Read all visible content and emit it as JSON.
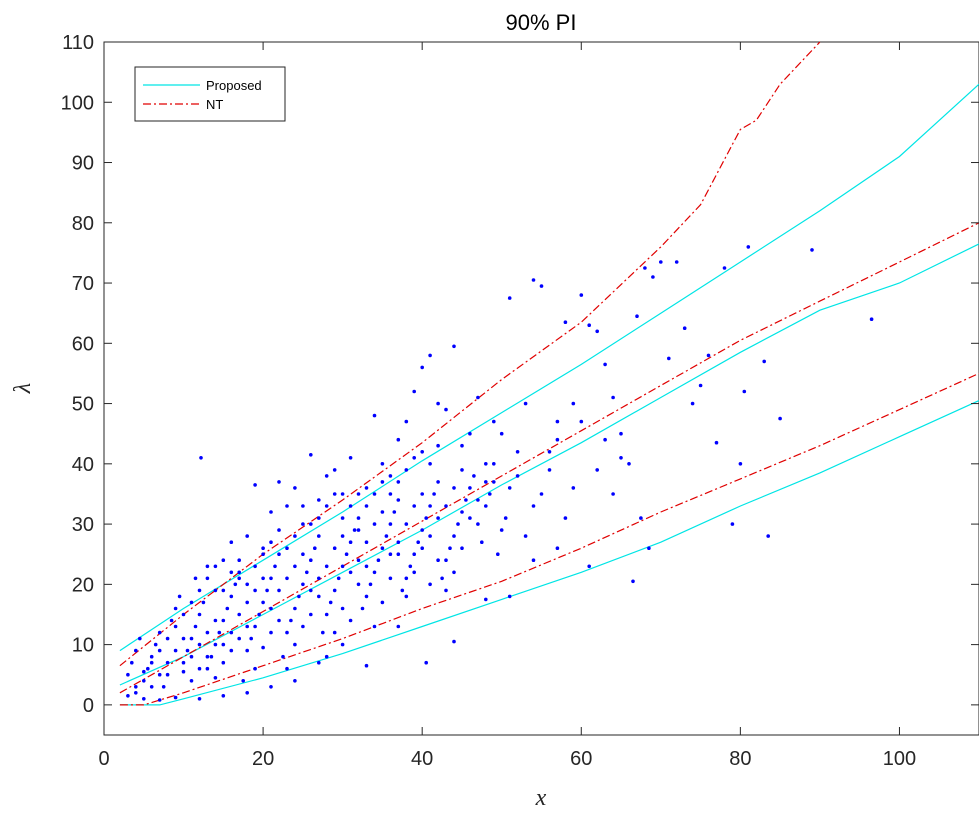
{
  "chart_data": {
    "type": "scatter",
    "title": "90% PI",
    "xlabel": "x",
    "ylabel": "λ",
    "xlim": [
      0,
      110
    ],
    "ylim": [
      -5,
      110
    ],
    "xticks": [
      0,
      20,
      40,
      60,
      80,
      100
    ],
    "yticks": [
      0,
      10,
      20,
      30,
      40,
      50,
      60,
      70,
      80,
      90,
      100,
      110
    ],
    "grid": false,
    "legend_position": "top-left",
    "legend": [
      {
        "label": "Proposed",
        "color": "#00e5e5",
        "style": "solid"
      },
      {
        "label": "NT",
        "color": "#e00000",
        "style": "dash-dot"
      }
    ],
    "colors": {
      "points": "#0000ff",
      "proposed": "#00e5e5",
      "nt": "#e00000",
      "axes": "#262626"
    },
    "series": [
      {
        "name": "Proposed",
        "role": "upper",
        "x": [
          2,
          10,
          20,
          30,
          40,
          50,
          60,
          70,
          80,
          90,
          100,
          110
        ],
        "y": [
          9,
          16,
          24,
          32,
          40.5,
          48.5,
          56.5,
          65,
          73.5,
          82,
          91,
          103
        ]
      },
      {
        "name": "Proposed",
        "role": "median",
        "x": [
          2,
          10,
          20,
          30,
          40,
          50,
          60,
          70,
          80,
          90,
          100,
          110
        ],
        "y": [
          3.3,
          8,
          15,
          22,
          29,
          36.5,
          43.5,
          51,
          58.5,
          65.5,
          70,
          76.5
        ]
      },
      {
        "name": "Proposed",
        "role": "lower",
        "x": [
          2,
          7,
          10,
          20,
          30,
          40,
          50,
          60,
          70,
          80,
          90,
          100,
          110
        ],
        "y": [
          0,
          0,
          1,
          4.5,
          8.5,
          13,
          17.5,
          22,
          27,
          33,
          38.5,
          44.5,
          50.5
        ]
      },
      {
        "name": "NT",
        "role": "upper",
        "x": [
          2,
          10,
          20,
          30,
          40,
          50,
          60,
          70,
          75,
          79,
          80,
          82,
          85,
          90
        ],
        "y": [
          6.5,
          15,
          25,
          34,
          43.5,
          54,
          63.5,
          76,
          83,
          93,
          95.5,
          97,
          103,
          110
        ]
      },
      {
        "name": "NT",
        "role": "median",
        "x": [
          2,
          10,
          20,
          30,
          40,
          50,
          60,
          70,
          80,
          90,
          100,
          110
        ],
        "y": [
          2,
          8,
          15.5,
          23,
          30.5,
          38,
          45.5,
          53,
          60.5,
          67,
          73.5,
          80
        ]
      },
      {
        "name": "NT",
        "role": "lower",
        "x": [
          2,
          5,
          10,
          20,
          30,
          40,
          50,
          60,
          70,
          80,
          90,
          100,
          110
        ],
        "y": [
          0,
          0,
          2,
          6.5,
          11,
          16,
          20.5,
          26,
          32,
          37.5,
          43,
          49,
          55
        ]
      }
    ],
    "points": [
      [
        12.2,
        41
      ],
      [
        11.5,
        21
      ],
      [
        13,
        23
      ],
      [
        14,
        19
      ],
      [
        15,
        24
      ],
      [
        16,
        27
      ],
      [
        17,
        21
      ],
      [
        18,
        28
      ],
      [
        19,
        36.5
      ],
      [
        20,
        26
      ],
      [
        21,
        32
      ],
      [
        22,
        37
      ],
      [
        23,
        33
      ],
      [
        24,
        36
      ],
      [
        25,
        30
      ],
      [
        26,
        41.5
      ],
      [
        27,
        34
      ],
      [
        28,
        38
      ],
      [
        29,
        39
      ],
      [
        30,
        35
      ],
      [
        31,
        41
      ],
      [
        32,
        29
      ],
      [
        33,
        36
      ],
      [
        34,
        48
      ],
      [
        35,
        40
      ],
      [
        36,
        38
      ],
      [
        37,
        44
      ],
      [
        38,
        47
      ],
      [
        39,
        52
      ],
      [
        40,
        56
      ],
      [
        41,
        58
      ],
      [
        42,
        50
      ],
      [
        43,
        49
      ],
      [
        44,
        59.5
      ],
      [
        45,
        43
      ],
      [
        46,
        45
      ],
      [
        47,
        51
      ],
      [
        48,
        40
      ],
      [
        49,
        47
      ],
      [
        50,
        45
      ],
      [
        51,
        67.5
      ],
      [
        52,
        42
      ],
      [
        53,
        50
      ],
      [
        54,
        70.5
      ],
      [
        55,
        69.5
      ],
      [
        56,
        39
      ],
      [
        57,
        47
      ],
      [
        58,
        63.5
      ],
      [
        59,
        50
      ],
      [
        60,
        68
      ],
      [
        61,
        63
      ],
      [
        62,
        62
      ],
      [
        63,
        56.5
      ],
      [
        64,
        51
      ],
      [
        65,
        45
      ],
      [
        66,
        40
      ],
      [
        67,
        64.5
      ],
      [
        68,
        72.5
      ],
      [
        69,
        71
      ],
      [
        70,
        73.5
      ],
      [
        71,
        57.5
      ],
      [
        72,
        73.5
      ],
      [
        73,
        62.5
      ],
      [
        74,
        50
      ],
      [
        75,
        53
      ],
      [
        76,
        58
      ],
      [
        77,
        43.5
      ],
      [
        78,
        72.5
      ],
      [
        79,
        30
      ],
      [
        80,
        40
      ],
      [
        80.5,
        52
      ],
      [
        81,
        76
      ],
      [
        83,
        57
      ],
      [
        83.5,
        28
      ],
      [
        85,
        47.5
      ],
      [
        89,
        75.5
      ],
      [
        96.5,
        64
      ],
      [
        66.5,
        20.5
      ],
      [
        67.5,
        31
      ],
      [
        68.5,
        26
      ],
      [
        61,
        23
      ],
      [
        57,
        26
      ],
      [
        54,
        24
      ],
      [
        51,
        18
      ],
      [
        48,
        17.5
      ],
      [
        44,
        10.5
      ],
      [
        40.5,
        7
      ],
      [
        37,
        13
      ],
      [
        33,
        6.5
      ],
      [
        30,
        10
      ],
      [
        27,
        7
      ],
      [
        24,
        4
      ],
      [
        21,
        3
      ],
      [
        18,
        2
      ],
      [
        15,
        1.5
      ],
      [
        12,
        1
      ],
      [
        9,
        1.2
      ],
      [
        7,
        0.8
      ],
      [
        5,
        1
      ],
      [
        4,
        2
      ],
      [
        3,
        5
      ],
      [
        3.5,
        7
      ],
      [
        4,
        9
      ],
      [
        4.5,
        11
      ],
      [
        5,
        4
      ],
      [
        5.5,
        6
      ],
      [
        6,
        8
      ],
      [
        6.5,
        10
      ],
      [
        7,
        12
      ],
      [
        7.5,
        3
      ],
      [
        8,
        5
      ],
      [
        8.5,
        14
      ],
      [
        9,
        16
      ],
      [
        9.5,
        18
      ],
      [
        10,
        7
      ],
      [
        10.5,
        9
      ],
      [
        11,
        11
      ],
      [
        11.5,
        13
      ],
      [
        12,
        15
      ],
      [
        12.5,
        17
      ],
      [
        13,
        6
      ],
      [
        13.5,
        8
      ],
      [
        14,
        10
      ],
      [
        14.5,
        12
      ],
      [
        15,
        14
      ],
      [
        15.5,
        16
      ],
      [
        16,
        18
      ],
      [
        16.5,
        20
      ],
      [
        17,
        22
      ],
      [
        17.5,
        4
      ],
      [
        18,
        9
      ],
      [
        18.5,
        11
      ],
      [
        19,
        13
      ],
      [
        19.5,
        15
      ],
      [
        20,
        17
      ],
      [
        20.5,
        19
      ],
      [
        21,
        21
      ],
      [
        21.5,
        23
      ],
      [
        22,
        25
      ],
      [
        22.5,
        8
      ],
      [
        23,
        12
      ],
      [
        23.5,
        14
      ],
      [
        24,
        16
      ],
      [
        24.5,
        18
      ],
      [
        25,
        20
      ],
      [
        25.5,
        22
      ],
      [
        26,
        24
      ],
      [
        26.5,
        26
      ],
      [
        27,
        28
      ],
      [
        27.5,
        12
      ],
      [
        28,
        15
      ],
      [
        28.5,
        17
      ],
      [
        29,
        19
      ],
      [
        29.5,
        21
      ],
      [
        30,
        23
      ],
      [
        30.5,
        25
      ],
      [
        31,
        27
      ],
      [
        31.5,
        29
      ],
      [
        32,
        31
      ],
      [
        32.5,
        16
      ],
      [
        33,
        18
      ],
      [
        33.5,
        20
      ],
      [
        34,
        22
      ],
      [
        34.5,
        24
      ],
      [
        35,
        26
      ],
      [
        35.5,
        28
      ],
      [
        36,
        30
      ],
      [
        36.5,
        32
      ],
      [
        37,
        34
      ],
      [
        37.5,
        19
      ],
      [
        38,
        21
      ],
      [
        38.5,
        23
      ],
      [
        39,
        25
      ],
      [
        39.5,
        27
      ],
      [
        40,
        29
      ],
      [
        40.5,
        31
      ],
      [
        41,
        33
      ],
      [
        41.5,
        35
      ],
      [
        42,
        37
      ],
      [
        42.5,
        21
      ],
      [
        43,
        24
      ],
      [
        43.5,
        26
      ],
      [
        44,
        28
      ],
      [
        44.5,
        30
      ],
      [
        45,
        32
      ],
      [
        45.5,
        34
      ],
      [
        46,
        36
      ],
      [
        46.5,
        38
      ],
      [
        47,
        30
      ],
      [
        47.5,
        27
      ],
      [
        48,
        33
      ],
      [
        48.5,
        35
      ],
      [
        49,
        37
      ],
      [
        49.5,
        25
      ],
      [
        50,
        29
      ],
      [
        50.5,
        31
      ],
      [
        51,
        36
      ],
      [
        52,
        38
      ],
      [
        53,
        28
      ],
      [
        54,
        33
      ],
      [
        55,
        35
      ],
      [
        56,
        42
      ],
      [
        57,
        44
      ],
      [
        58,
        31
      ],
      [
        59,
        36
      ],
      [
        60,
        47
      ],
      [
        62,
        39
      ],
      [
        63,
        44
      ],
      [
        64,
        35
      ],
      [
        65,
        41
      ],
      [
        6,
        3
      ],
      [
        7,
        5
      ],
      [
        8,
        7
      ],
      [
        9,
        9
      ],
      [
        10,
        11
      ],
      [
        11,
        4
      ],
      [
        12,
        6
      ],
      [
        13,
        8
      ],
      [
        14,
        4.5
      ],
      [
        15,
        7
      ],
      [
        16,
        9
      ],
      [
        17,
        11
      ],
      [
        18,
        13
      ],
      [
        19,
        6
      ],
      [
        20,
        9.5
      ],
      [
        21,
        12
      ],
      [
        22,
        14
      ],
      [
        23,
        6
      ],
      [
        24,
        10
      ],
      [
        25,
        13
      ],
      [
        26,
        15
      ],
      [
        27,
        18
      ],
      [
        28,
        8
      ],
      [
        29,
        12
      ],
      [
        30,
        16
      ],
      [
        31,
        14
      ],
      [
        32,
        20
      ],
      [
        33,
        23
      ],
      [
        34,
        13
      ],
      [
        35,
        17
      ],
      [
        36,
        21
      ],
      [
        37,
        25
      ],
      [
        38,
        18
      ],
      [
        39,
        22
      ],
      [
        40,
        26
      ],
      [
        41,
        20
      ],
      [
        42,
        24
      ],
      [
        43,
        19
      ],
      [
        44,
        22
      ],
      [
        45,
        26
      ],
      [
        10,
        5.5
      ],
      [
        11,
        8
      ],
      [
        12,
        10
      ],
      [
        13,
        12
      ],
      [
        14,
        14
      ],
      [
        15,
        10
      ],
      [
        16,
        12
      ],
      [
        17,
        15
      ],
      [
        18,
        17
      ],
      [
        19,
        19
      ],
      [
        20,
        21
      ],
      [
        21,
        16
      ],
      [
        22,
        19
      ],
      [
        23,
        21
      ],
      [
        24,
        23
      ],
      [
        25,
        25
      ],
      [
        26,
        19
      ],
      [
        27,
        21
      ],
      [
        28,
        23
      ],
      [
        29,
        26
      ],
      [
        30,
        28
      ],
      [
        31,
        22
      ],
      [
        32,
        24
      ],
      [
        33,
        27
      ],
      [
        34,
        30
      ],
      [
        35,
        32
      ],
      [
        36,
        25
      ],
      [
        37,
        27
      ],
      [
        38,
        30
      ],
      [
        39,
        33
      ],
      [
        40,
        35
      ],
      [
        41,
        28
      ],
      [
        42,
        31
      ],
      [
        43,
        33
      ],
      [
        44,
        36
      ],
      [
        45,
        39
      ],
      [
        46,
        31
      ],
      [
        47,
        34
      ],
      [
        48,
        37
      ],
      [
        49,
        40
      ],
      [
        3,
        1.5
      ],
      [
        4,
        3
      ],
      [
        5,
        5.5
      ],
      [
        6,
        7
      ],
      [
        7,
        9
      ],
      [
        8,
        11
      ],
      [
        9,
        13
      ],
      [
        10,
        15
      ],
      [
        11,
        17
      ],
      [
        12,
        19
      ],
      [
        13,
        21
      ],
      [
        14,
        23
      ],
      [
        15,
        19
      ],
      [
        16,
        22
      ],
      [
        17,
        24
      ],
      [
        18,
        20
      ],
      [
        19,
        23
      ],
      [
        20,
        25
      ],
      [
        21,
        27
      ],
      [
        22,
        29
      ],
      [
        23,
        26
      ],
      [
        24,
        28
      ],
      [
        25,
        33
      ],
      [
        26,
        30
      ],
      [
        27,
        31
      ],
      [
        28,
        33
      ],
      [
        29,
        35
      ],
      [
        30,
        31
      ],
      [
        31,
        33
      ],
      [
        32,
        35
      ],
      [
        33,
        33
      ],
      [
        34,
        35
      ],
      [
        35,
        37
      ],
      [
        36,
        35
      ],
      [
        37,
        37
      ],
      [
        38,
        39
      ],
      [
        39,
        41
      ],
      [
        40,
        42
      ],
      [
        41,
        40
      ],
      [
        42,
        43
      ]
    ]
  }
}
